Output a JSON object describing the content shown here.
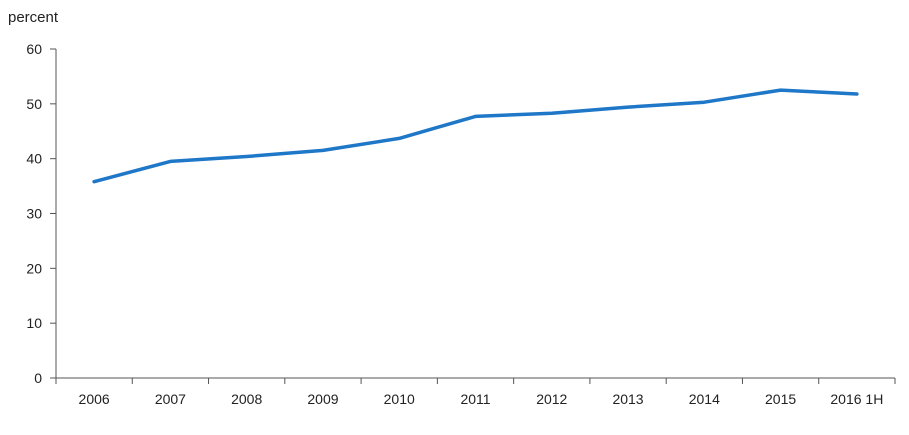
{
  "chart_data": {
    "type": "line",
    "title": "",
    "xlabel": "",
    "ylabel": "percent",
    "ylim": [
      0,
      60
    ],
    "yticks": [
      0,
      10,
      20,
      30,
      40,
      50,
      60
    ],
    "grid": false,
    "legend": "none",
    "categories": [
      "2006",
      "2007",
      "2008",
      "2009",
      "2010",
      "2011",
      "2012",
      "2013",
      "2014",
      "2015",
      "2016 1H"
    ],
    "series": [
      {
        "color": "#1f77c8",
        "values": [
          35.8,
          39.5,
          40.4,
          41.5,
          43.7,
          47.7,
          48.3,
          49.4,
          50.3,
          52.5,
          51.8
        ]
      }
    ]
  }
}
